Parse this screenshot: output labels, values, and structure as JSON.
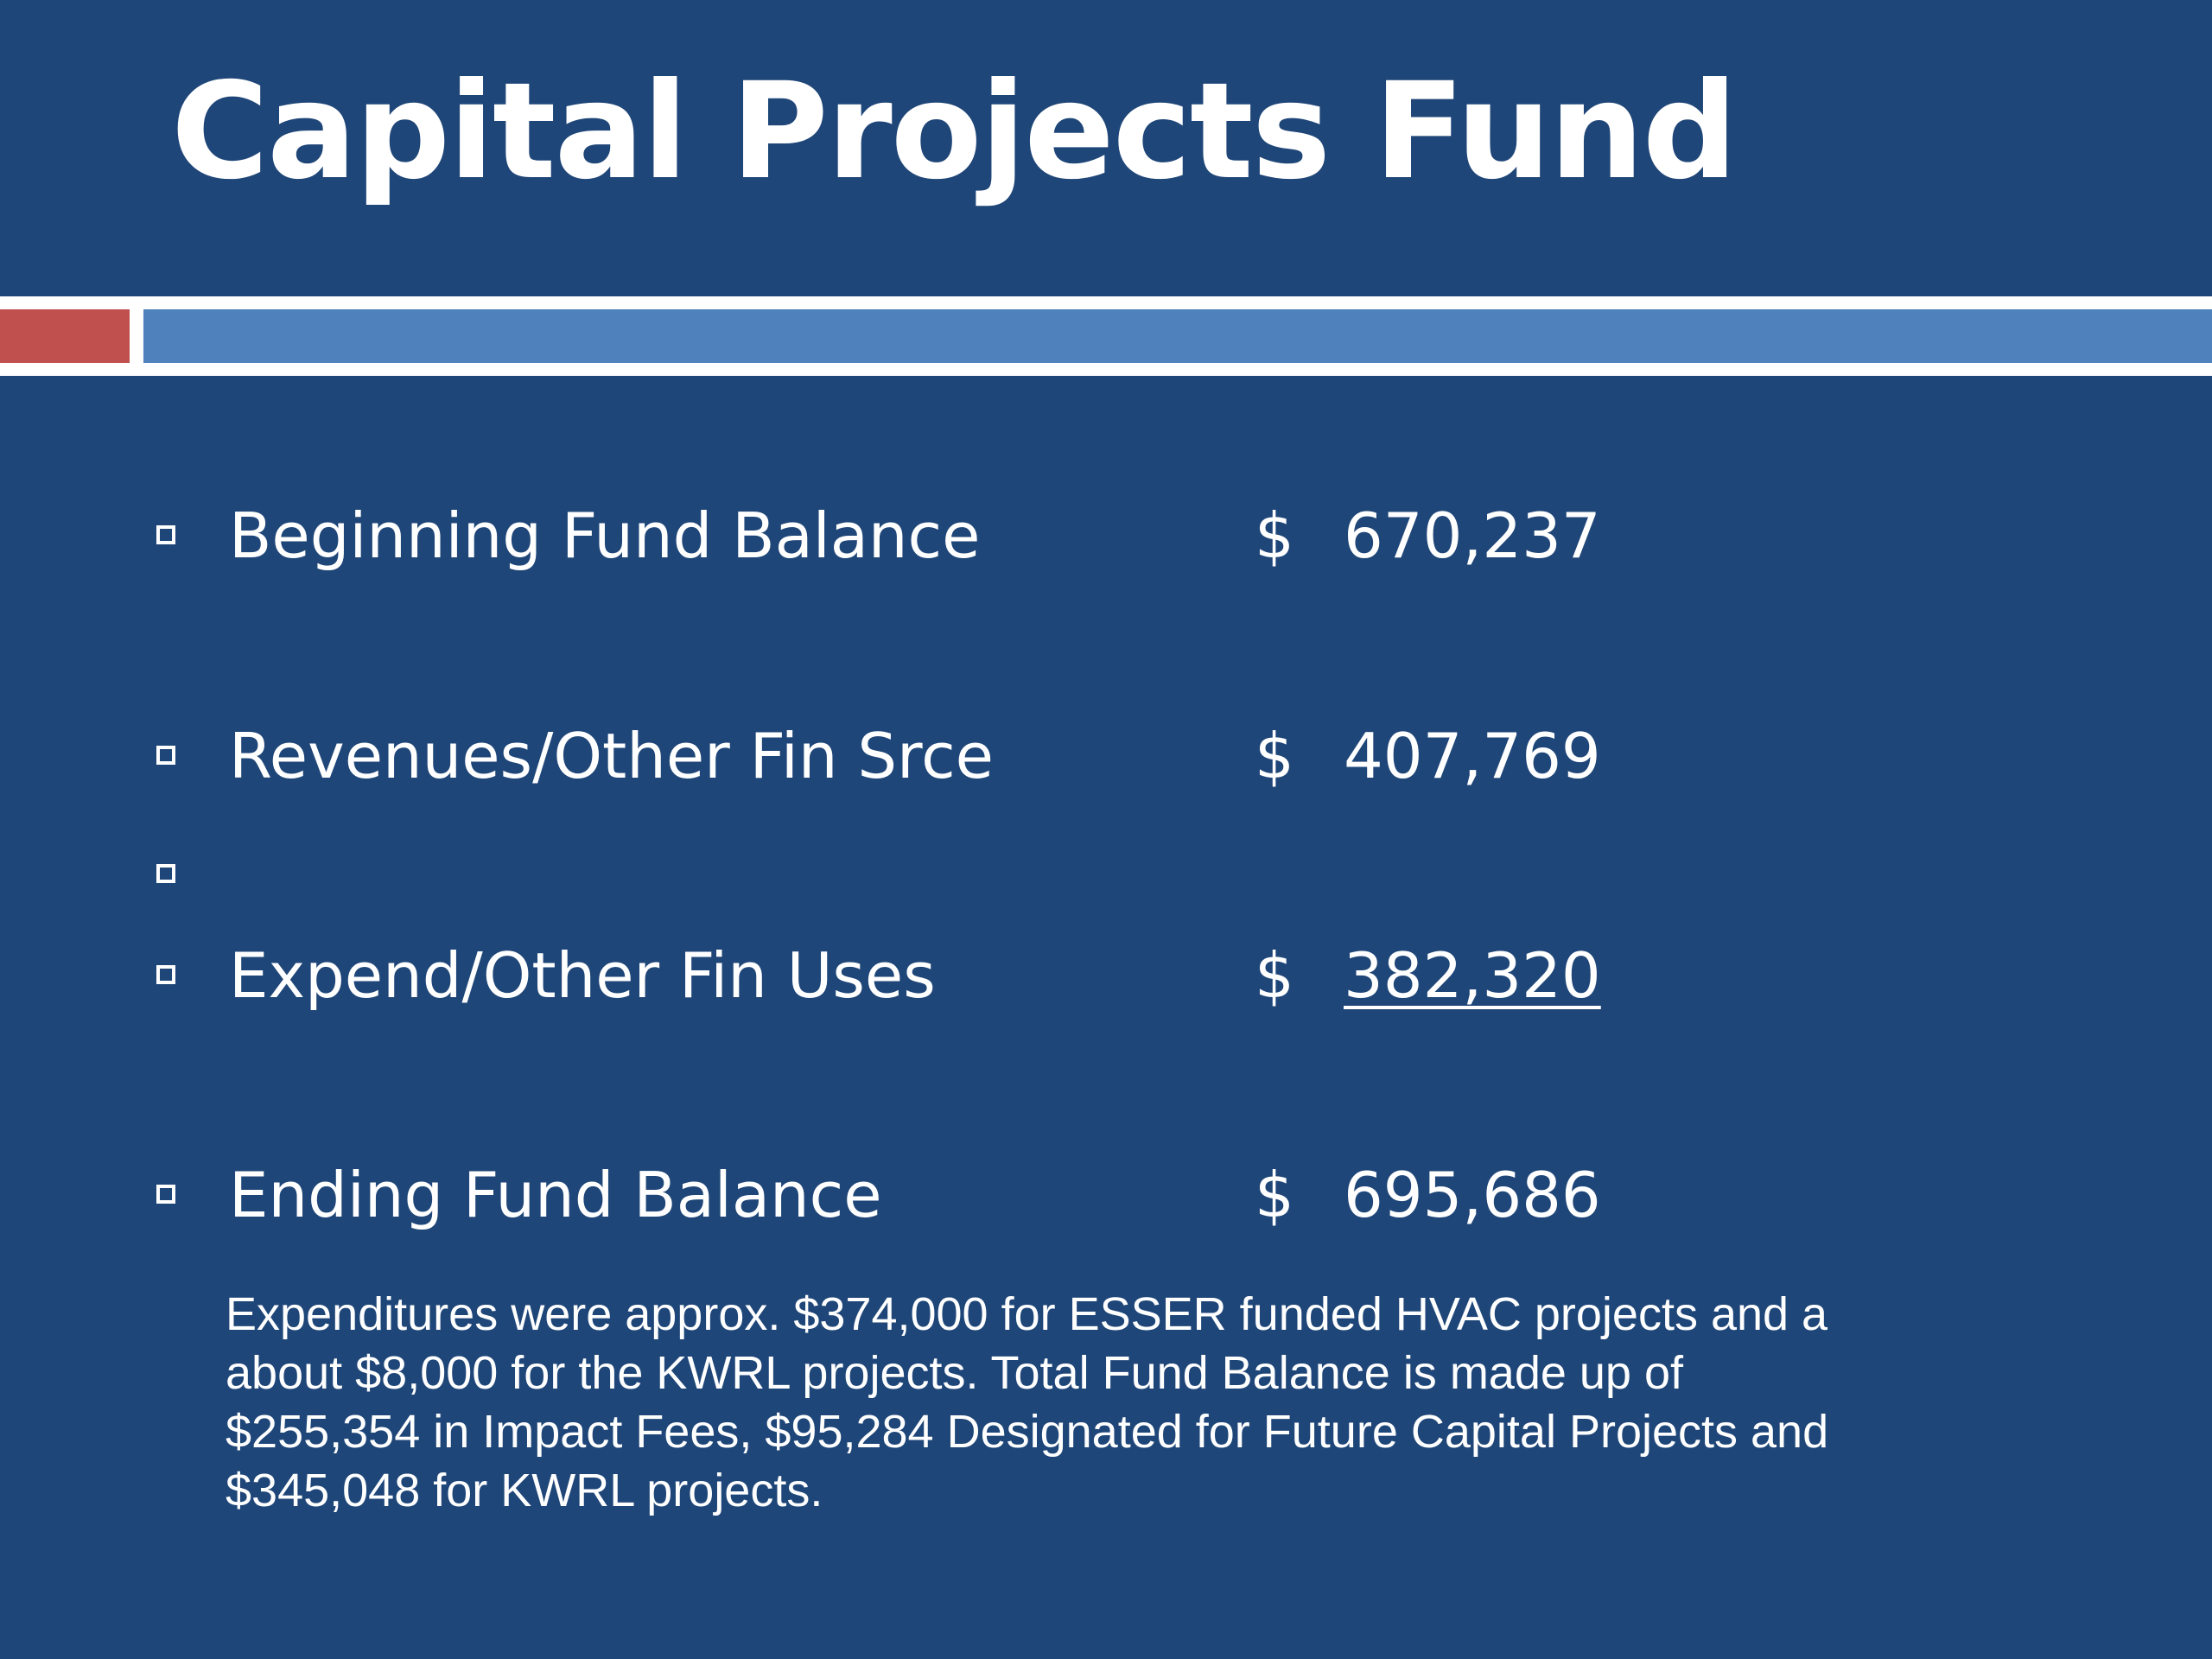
{
  "slide": {
    "title": "Capital Projects Fund",
    "colors": {
      "background": "#1f4678",
      "accent_red": "#c0504d",
      "accent_blue": "#4f81bd"
    }
  },
  "rows": [
    {
      "label": "Beginning Fund Balance",
      "currency": "$",
      "amount": "670,237"
    },
    {
      "label": "Revenues/Other Fin Srce",
      "currency": "$",
      "amount": "407,769"
    },
    {
      "label": "",
      "currency": "",
      "amount": ""
    },
    {
      "label": "Expend/Other Fin Uses",
      "currency": "$",
      "amount": "382,320"
    },
    {
      "label": "Ending Fund Balance",
      "currency": "$",
      "amount": "695,686"
    }
  ],
  "note": "Expenditures were approx. $374,000 for ESSER funded HVAC projects and a about $8,000 for the KWRL projects. Total Fund Balance is made up of $255,354 in Impact Fees, $95,284 Designated for Future Capital Projects and $345,048 for KWRL projects."
}
